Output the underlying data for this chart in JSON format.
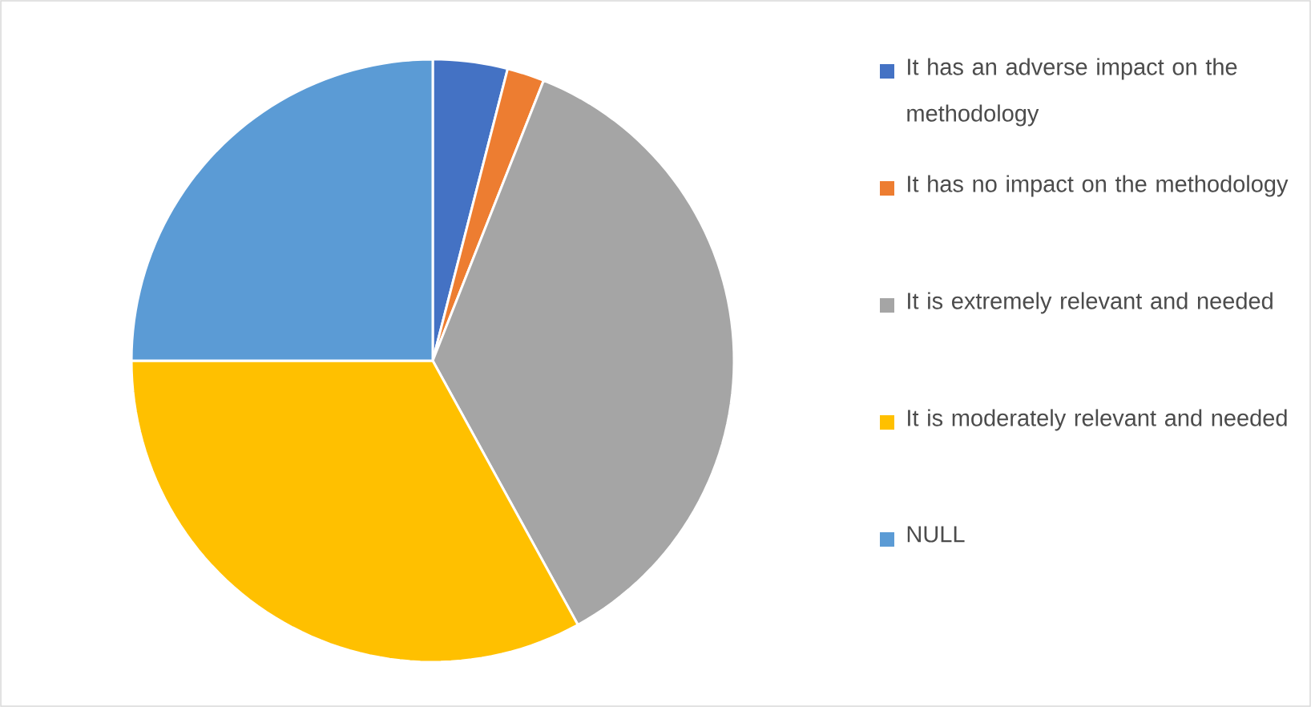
{
  "chart_data": {
    "type": "pie",
    "categories": [
      "It has an adverse impact on the methodology",
      "It has no impact on the methodology",
      "It is extremely relevant and needed",
      "It is moderately relevant and needed",
      "NULL"
    ],
    "values": [
      4,
      2,
      36,
      33,
      25
    ],
    "colors": [
      "#4472c4",
      "#ed7d31",
      "#a5a5a5",
      "#ffc000",
      "#5b9bd5"
    ],
    "legend": "right"
  }
}
